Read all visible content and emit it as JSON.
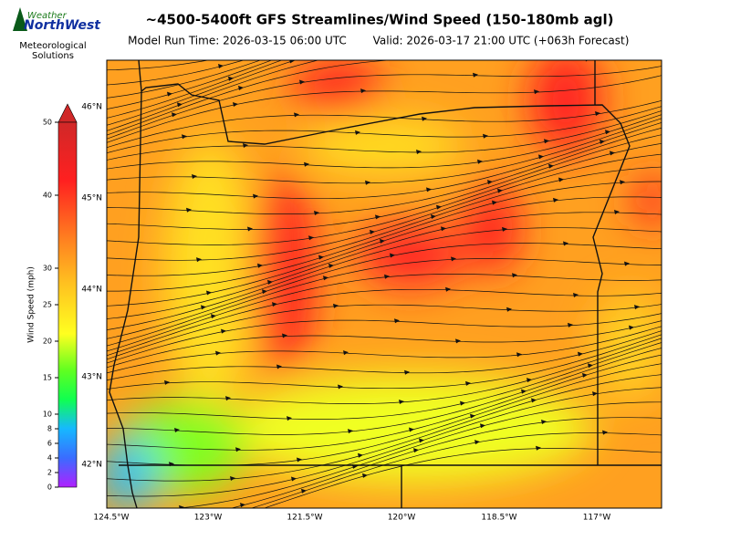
{
  "logo": {
    "line1": "Weather",
    "line2": "NorthWest",
    "caption": "Meteorological\nSolutions"
  },
  "header": {
    "title": "~4500-5400ft GFS Streamlines/Wind Speed (150-180mb agl)",
    "model_run": "Model Run Time: 2026-03-15 06:00 UTC",
    "valid": "Valid: 2026-03-17 21:00 UTC  (+063h Forecast)"
  },
  "colorbar": {
    "label": "Wind Speed (mph)",
    "lim": [
      0,
      50
    ],
    "ticks": [
      0,
      2,
      4,
      6,
      8,
      10,
      15,
      20,
      25,
      30,
      40,
      50
    ]
  },
  "map": {
    "lat_labels": [
      "46°N",
      "45°N",
      "44°N",
      "43°N",
      "42°N"
    ],
    "lon_labels": [
      "124.5°W",
      "123°W",
      "121.5°W",
      "120°W",
      "118.5°W",
      "117°W"
    ]
  }
}
